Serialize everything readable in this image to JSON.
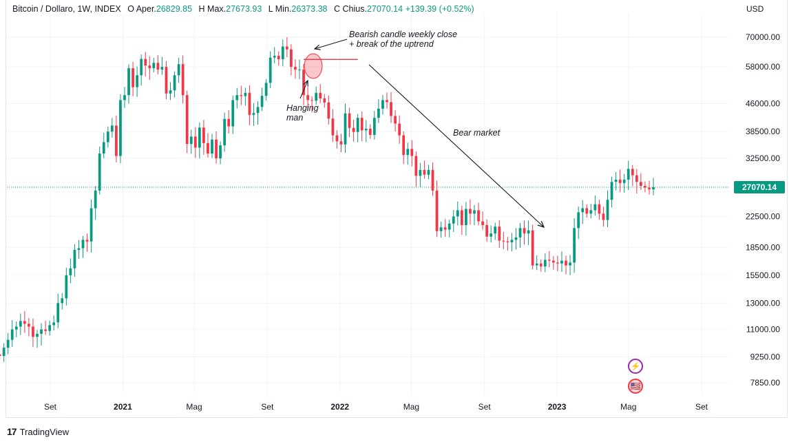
{
  "legend": {
    "symbol": "Bitcoin / Dollaro, 1W, INDEX",
    "open_label": "O",
    "open_text": "Aper.",
    "open": "26829.85",
    "high_label": "H",
    "high_text": "Max.",
    "high": "27673.93",
    "low_label": "L",
    "low_text": "Min.",
    "low": "26373.38",
    "close_label": "C",
    "close_text": "Chius.",
    "close": "27070.14",
    "change": "+139.39 (+0.52%)"
  },
  "currency": "USD",
  "branding": {
    "name": "TradingView",
    "logo_text": "17"
  },
  "badges": {
    "bolt_icon": "⚡",
    "flag_icon": "🇺🇸"
  },
  "colors": {
    "up": "#089981",
    "down": "#f23645",
    "last_price_bg": "#089981",
    "arrow": "#131722",
    "hline": "#f23645"
  },
  "chart_data": {
    "type": "candlestick",
    "scale": "log",
    "y_tick_labels": [
      "70000.00",
      "58000.00",
      "46000.00",
      "38500.00",
      "32500.00",
      "27070.14",
      "22500.00",
      "18500.00",
      "15500.00",
      "13000.00",
      "11000.00",
      "9250.00",
      "7850.00"
    ],
    "y_ticks": [
      70000,
      58000,
      46000,
      38500,
      32500,
      22500,
      18500,
      15500,
      13000,
      11000,
      9250,
      7850
    ],
    "last_price": 27070.14,
    "last_price_label": "27070.14",
    "x_ticks": [
      {
        "label": "Set",
        "date": "2020-09-01"
      },
      {
        "label": "2021",
        "date": "2021-01-01"
      },
      {
        "label": "Mag",
        "date": "2021-05-01"
      },
      {
        "label": "Set",
        "date": "2021-09-01"
      },
      {
        "label": "2022",
        "date": "2022-01-01"
      },
      {
        "label": "Mag",
        "date": "2022-05-01"
      },
      {
        "label": "Set",
        "date": "2022-09-01"
      },
      {
        "label": "2023",
        "date": "2023-01-01"
      },
      {
        "label": "Mag",
        "date": "2023-05-01"
      },
      {
        "label": "Set",
        "date": "2023-09-01"
      }
    ],
    "first_week": "2020-05-25",
    "weekly_close": [
      9200,
      9400,
      9300,
      9800,
      10300,
      11000,
      11200,
      11600,
      11400,
      11200,
      10500,
      10700,
      11000,
      10900,
      11300,
      11500,
      13000,
      13400,
      15500,
      16200,
      18200,
      18400,
      19400,
      19200,
      23700,
      26500,
      33500,
      36000,
      38500,
      40000,
      33000,
      47000,
      48500,
      57500,
      51000,
      55000,
      61000,
      58500,
      57500,
      59500,
      57000,
      58000,
      49000,
      50000,
      55000,
      59000,
      48500,
      35600,
      37300,
      34800,
      39500,
      35800,
      33500,
      36600,
      32500,
      35300,
      41700,
      39800,
      47000,
      48500,
      48200,
      49200,
      42800,
      43300,
      45000,
      48300,
      52400,
      61500,
      62200,
      60900,
      66000,
      64800,
      58000,
      57000,
      57000,
      48500,
      47000,
      46800,
      49200,
      47500,
      46300,
      41800,
      37600,
      36200,
      35500,
      43200,
      39400,
      38400,
      42000,
      38800,
      39200,
      37700,
      42000,
      44500,
      47000,
      46400,
      42500,
      40500,
      37600,
      33200,
      34500,
      33000,
      29100,
      30200,
      29300,
      30200,
      26500,
      20500,
      21000,
      20700,
      21500,
      22500,
      23400,
      21300,
      23600,
      22900,
      23400,
      21800,
      21300,
      19800,
      20200,
      21100,
      19300,
      19200,
      19100,
      19400,
      19700,
      20900,
      20200,
      20600,
      16500,
      16700,
      16400,
      17100,
      17000,
      16800,
      16700,
      17000,
      16500,
      16800,
      20900,
      23100,
      23700,
      22900,
      23400,
      24300,
      22900,
      22000,
      25000,
      28000,
      28400,
      27800,
      28400,
      30400,
      29200,
      28000,
      27300,
      27000,
      26700,
      27070
    ],
    "highlight_hline": {
      "price": 60800,
      "from_date": "2021-11-01",
      "to_date": "2022-01-31"
    },
    "annotations": [
      {
        "id": "bearish-note",
        "lines": [
          "Bearish candle weekly close",
          "+ break of the uptrend"
        ]
      },
      {
        "id": "hanging-note",
        "lines": [
          "Hanging",
          "man"
        ]
      },
      {
        "id": "bear-market",
        "lines": [
          "Bear market"
        ]
      }
    ]
  }
}
